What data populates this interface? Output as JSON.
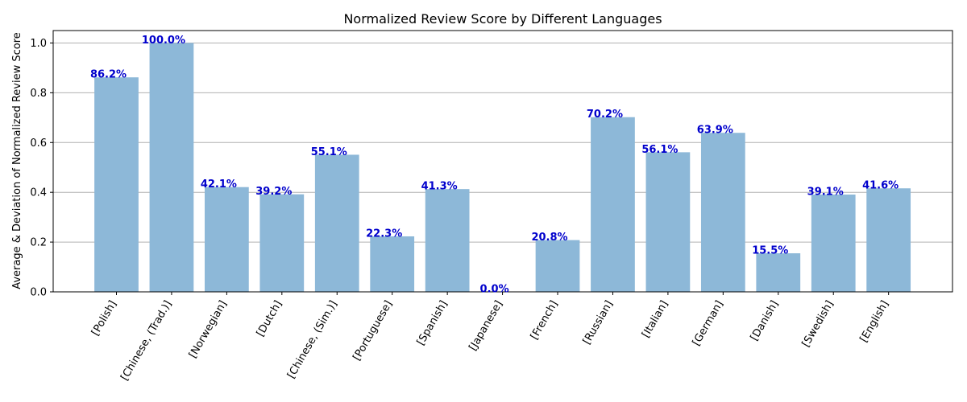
{
  "chart_data": {
    "type": "bar",
    "title": "Normalized Review Score by Different Languages",
    "xlabel": "",
    "ylabel": "Average & Deviation of Normalized Review Score",
    "categories": [
      "[Polish]",
      "[Chinese, (Trad.)]",
      "[Norwegian]",
      "[Dutch]",
      "[Chinese, (Sim.)]",
      "[Portuguese]",
      "[Spanish]",
      "[Japanese]",
      "[French]",
      "[Russian]",
      "[Italian]",
      "[German]",
      "[Danish]",
      "[Swedish]",
      "[English]"
    ],
    "values": [
      0.862,
      1.0,
      0.421,
      0.392,
      0.551,
      0.223,
      0.413,
      0.0,
      0.208,
      0.702,
      0.561,
      0.639,
      0.155,
      0.391,
      0.416
    ],
    "data_labels": [
      "86.2%",
      "100.0%",
      "42.1%",
      "39.2%",
      "55.1%",
      "22.3%",
      "41.3%",
      "0.0%",
      "20.8%",
      "70.2%",
      "56.1%",
      "63.9%",
      "15.5%",
      "39.1%",
      "41.6%"
    ],
    "ylim": [
      0,
      1.05
    ],
    "yticks": [
      0.0,
      0.2,
      0.4,
      0.6,
      0.8,
      1.0
    ],
    "ytick_labels": [
      "0.0",
      "0.2",
      "0.4",
      "0.6",
      "0.8",
      "1.0"
    ],
    "grid": "y-major",
    "legend": "none",
    "colors": {
      "bar": "#8db8d8",
      "data_label": "#0000cc",
      "grid": "#b0b0b0",
      "axis": "#000000"
    }
  }
}
